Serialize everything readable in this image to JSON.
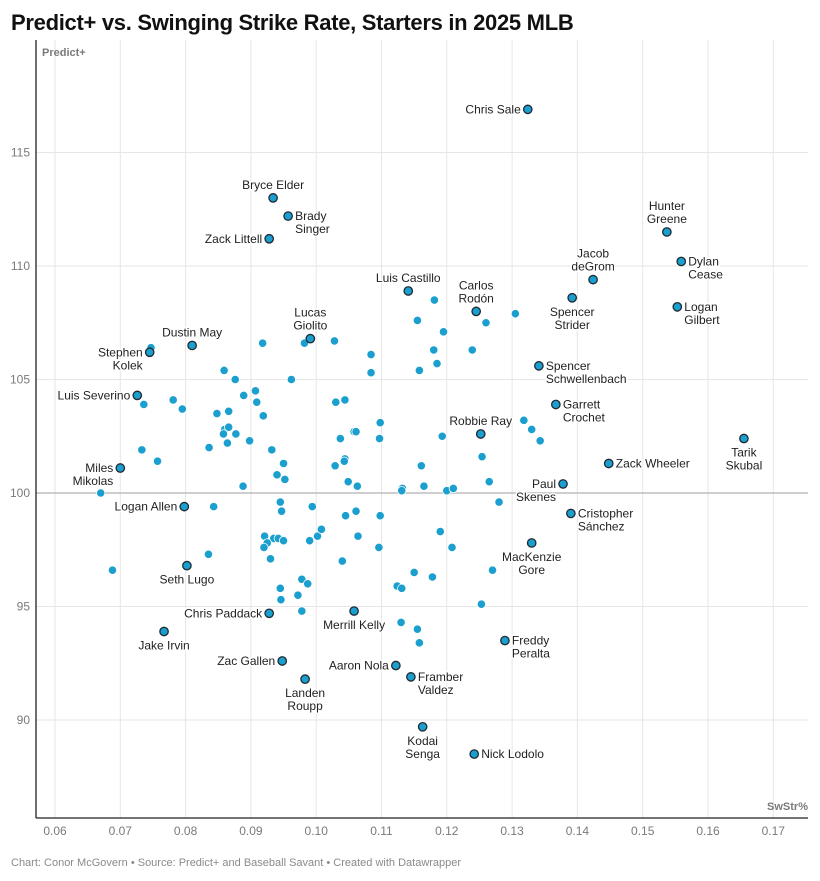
{
  "title": "Predict+ vs. Swinging Strike Rate, Starters in 2025 MLB",
  "footer": "Chart: Conor McGovern • Source: Predict+ and Baseball Savant • Created with Datawrapper",
  "colors": {
    "dot": "#1a9fcf",
    "dot_outline": "#1f2a33",
    "grid": "#e6e6e6",
    "axis": "#222222",
    "ref_line": "#bdbdbd"
  },
  "chart_data": {
    "type": "scatter",
    "title": "Predict+ vs. Swinging Strike Rate, Starters in 2025 MLB",
    "xlabel": "SwStr%",
    "ylabel": "Predict+",
    "xlim": [
      0.0545,
      0.1755
    ],
    "ylim": [
      85.7,
      118.4
    ],
    "x_ticks": [
      "0.06",
      "0.07",
      "0.08",
      "0.09",
      "0.10",
      "0.11",
      "0.12",
      "0.13",
      "0.14",
      "0.15",
      "0.16",
      "0.17"
    ],
    "x_tick_values": [
      0.06,
      0.07,
      0.08,
      0.09,
      0.1,
      0.11,
      0.12,
      0.13,
      0.14,
      0.15,
      0.16,
      0.17
    ],
    "y_ticks": [
      "90",
      "95",
      "100",
      "105",
      "110",
      "115"
    ],
    "y_tick_values": [
      90,
      95,
      100,
      105,
      110,
      115
    ],
    "reference_line_y": 100,
    "grid": true,
    "labeled_points": [
      {
        "name": "Chris Sale",
        "lines": [
          "Chris Sale"
        ],
        "x": 0.1324,
        "y": 116.9,
        "pos": "left"
      },
      {
        "name": "Bryce Elder",
        "lines": [
          "Bryce Elder"
        ],
        "x": 0.0934,
        "y": 113.0,
        "pos": "top"
      },
      {
        "name": "Brady Singer",
        "lines": [
          "Brady",
          "Singer"
        ],
        "x": 0.0957,
        "y": 112.2,
        "pos": "right"
      },
      {
        "name": "Zack Littell",
        "lines": [
          "Zack Littell"
        ],
        "x": 0.0928,
        "y": 111.2,
        "pos": "left"
      },
      {
        "name": "Hunter Greene",
        "lines": [
          "Hunter",
          "Greene"
        ],
        "x": 0.1537,
        "y": 111.5,
        "pos": "top"
      },
      {
        "name": "Dylan Cease",
        "lines": [
          "Dylan",
          "Cease"
        ],
        "x": 0.1559,
        "y": 110.2,
        "pos": "right"
      },
      {
        "name": "Jacob deGrom",
        "lines": [
          "Jacob",
          "deGrom"
        ],
        "x": 0.1424,
        "y": 109.4,
        "pos": "top"
      },
      {
        "name": "Spencer Strider",
        "lines": [
          "Spencer",
          "Strider"
        ],
        "x": 0.1392,
        "y": 108.6,
        "pos": "bottom"
      },
      {
        "name": "Logan Gilbert",
        "lines": [
          "Logan",
          "Gilbert"
        ],
        "x": 0.1553,
        "y": 108.2,
        "pos": "right"
      },
      {
        "name": "Luis Castillo",
        "lines": [
          "Luis Castillo"
        ],
        "x": 0.1141,
        "y": 108.9,
        "pos": "top"
      },
      {
        "name": "Carlos Rodón",
        "lines": [
          "Carlos",
          "Rodón"
        ],
        "x": 0.1245,
        "y": 108.0,
        "pos": "top"
      },
      {
        "name": "Lucas Giolito",
        "lines": [
          "Lucas",
          "Giolito"
        ],
        "x": 0.0991,
        "y": 106.8,
        "pos": "top"
      },
      {
        "name": "Dustin May",
        "lines": [
          "Dustin May"
        ],
        "x": 0.081,
        "y": 106.5,
        "pos": "top"
      },
      {
        "name": "Stephen Kolek",
        "lines": [
          "Stephen",
          "Kolek"
        ],
        "x": 0.0745,
        "y": 106.2,
        "pos": "left"
      },
      {
        "name": "Spencer Schwellenbach",
        "lines": [
          "Spencer",
          "Schwellenbach"
        ],
        "x": 0.1341,
        "y": 105.6,
        "pos": "right"
      },
      {
        "name": "Luis Severino",
        "lines": [
          "Luis Severino"
        ],
        "x": 0.0726,
        "y": 104.3,
        "pos": "left"
      },
      {
        "name": "Garrett Crochet",
        "lines": [
          "Garrett",
          "Crochet"
        ],
        "x": 0.1367,
        "y": 103.9,
        "pos": "right"
      },
      {
        "name": "Robbie Ray",
        "lines": [
          "Robbie Ray"
        ],
        "x": 0.1252,
        "y": 102.6,
        "pos": "top"
      },
      {
        "name": "Tarik Skubal",
        "lines": [
          "Tarik",
          "Skubal"
        ],
        "x": 0.1655,
        "y": 102.4,
        "pos": "bottom"
      },
      {
        "name": "Zack Wheeler",
        "lines": [
          "Zack Wheeler"
        ],
        "x": 0.1448,
        "y": 101.3,
        "pos": "right"
      },
      {
        "name": "Miles Mikolas",
        "lines": [
          "Miles",
          "Mikolas"
        ],
        "x": 0.07,
        "y": 101.1,
        "pos": "left"
      },
      {
        "name": "Paul Skenes",
        "lines": [
          "Paul",
          "Skenes"
        ],
        "x": 0.1378,
        "y": 100.4,
        "pos": "left"
      },
      {
        "name": "Logan Allen",
        "lines": [
          "Logan Allen"
        ],
        "x": 0.0798,
        "y": 99.4,
        "pos": "left"
      },
      {
        "name": "Cristopher Sánchez",
        "lines": [
          "Cristopher",
          "Sánchez"
        ],
        "x": 0.139,
        "y": 99.1,
        "pos": "right"
      },
      {
        "name": "MacKenzie Gore",
        "lines": [
          "MacKenzie",
          "Gore"
        ],
        "x": 0.133,
        "y": 97.8,
        "pos": "bottom"
      },
      {
        "name": "Seth Lugo",
        "lines": [
          "Seth Lugo"
        ],
        "x": 0.0802,
        "y": 96.8,
        "pos": "bottom"
      },
      {
        "name": "Chris Paddack",
        "lines": [
          "Chris Paddack"
        ],
        "x": 0.0928,
        "y": 94.7,
        "pos": "left"
      },
      {
        "name": "Merrill Kelly",
        "lines": [
          "Merrill Kelly"
        ],
        "x": 0.1058,
        "y": 94.8,
        "pos": "bottom"
      },
      {
        "name": "Jake Irvin",
        "lines": [
          "Jake Irvin"
        ],
        "x": 0.0767,
        "y": 93.9,
        "pos": "bottom"
      },
      {
        "name": "Freddy Peralta",
        "lines": [
          "Freddy",
          "Peralta"
        ],
        "x": 0.1289,
        "y": 93.5,
        "pos": "right"
      },
      {
        "name": "Zac Gallen",
        "lines": [
          "Zac Gallen"
        ],
        "x": 0.0948,
        "y": 92.6,
        "pos": "left"
      },
      {
        "name": "Aaron Nola",
        "lines": [
          "Aaron Nola"
        ],
        "x": 0.1122,
        "y": 92.4,
        "pos": "left"
      },
      {
        "name": "Framber Valdez",
        "lines": [
          "Framber",
          "Valdez"
        ],
        "x": 0.1145,
        "y": 91.9,
        "pos": "right"
      },
      {
        "name": "Landen Roupp",
        "lines": [
          "Landen",
          "Roupp"
        ],
        "x": 0.0983,
        "y": 91.8,
        "pos": "bottom"
      },
      {
        "name": "Kodai Senga",
        "lines": [
          "Kodai",
          "Senga"
        ],
        "x": 0.1163,
        "y": 89.7,
        "pos": "bottom"
      },
      {
        "name": "Nick Lodolo",
        "lines": [
          "Nick Lodolo"
        ],
        "x": 0.1242,
        "y": 88.5,
        "pos": "right"
      }
    ],
    "unlabeled_points": [
      [
        0.0747,
        106.4
      ],
      [
        0.0859,
        105.4
      ],
      [
        0.0918,
        106.6
      ],
      [
        0.0962,
        105.0
      ],
      [
        0.0876,
        105.0
      ],
      [
        0.0907,
        104.5
      ],
      [
        0.0889,
        104.3
      ],
      [
        0.0909,
        104.0
      ],
      [
        0.0781,
        104.1
      ],
      [
        0.0736,
        103.9
      ],
      [
        0.0795,
        103.7
      ],
      [
        0.0848,
        103.5
      ],
      [
        0.0866,
        103.6
      ],
      [
        0.0919,
        103.4
      ],
      [
        0.086,
        102.8
      ],
      [
        0.0866,
        102.9
      ],
      [
        0.0877,
        102.6
      ],
      [
        0.0858,
        102.6
      ],
      [
        0.0836,
        102.0
      ],
      [
        0.0864,
        102.2
      ],
      [
        0.0898,
        102.3
      ],
      [
        0.0932,
        101.9
      ],
      [
        0.0733,
        101.9
      ],
      [
        0.0757,
        101.4
      ],
      [
        0.095,
        101.3
      ],
      [
        0.094,
        100.8
      ],
      [
        0.0952,
        100.6
      ],
      [
        0.0888,
        100.3
      ],
      [
        0.067,
        100.0
      ],
      [
        0.1028,
        106.7
      ],
      [
        0.0982,
        106.6
      ],
      [
        0.1084,
        106.1
      ],
      [
        0.1084,
        105.3
      ],
      [
        0.118,
        106.3
      ],
      [
        0.1158,
        105.4
      ],
      [
        0.1185,
        105.7
      ],
      [
        0.1181,
        108.5
      ],
      [
        0.1155,
        107.6
      ],
      [
        0.1195,
        107.1
      ],
      [
        0.1239,
        106.3
      ],
      [
        0.126,
        107.5
      ],
      [
        0.1305,
        107.9
      ],
      [
        0.103,
        104.0
      ],
      [
        0.1044,
        104.1
      ],
      [
        0.1098,
        103.1
      ],
      [
        0.1037,
        102.4
      ],
      [
        0.1058,
        102.7
      ],
      [
        0.1061,
        102.7
      ],
      [
        0.1097,
        102.4
      ],
      [
        0.1193,
        102.5
      ],
      [
        0.1044,
        101.5
      ],
      [
        0.1043,
        101.4
      ],
      [
        0.1029,
        101.2
      ],
      [
        0.1161,
        101.2
      ],
      [
        0.1254,
        101.6
      ],
      [
        0.1049,
        100.5
      ],
      [
        0.1063,
        100.3
      ],
      [
        0.1132,
        100.2
      ],
      [
        0.1131,
        100.1
      ],
      [
        0.1165,
        100.3
      ],
      [
        0.12,
        100.1
      ],
      [
        0.121,
        100.2
      ],
      [
        0.1265,
        100.5
      ],
      [
        0.1318,
        103.2
      ],
      [
        0.133,
        102.8
      ],
      [
        0.1343,
        102.3
      ],
      [
        0.0945,
        99.6
      ],
      [
        0.0947,
        99.2
      ],
      [
        0.0843,
        99.4
      ],
      [
        0.0994,
        99.4
      ],
      [
        0.1045,
        99.0
      ],
      [
        0.1061,
        99.2
      ],
      [
        0.1098,
        99.0
      ],
      [
        0.128,
        99.6
      ],
      [
        0.0921,
        98.1
      ],
      [
        0.0935,
        98.0
      ],
      [
        0.0942,
        98.0
      ],
      [
        0.095,
        97.9
      ],
      [
        0.0925,
        97.8
      ],
      [
        0.092,
        97.6
      ],
      [
        0.093,
        97.1
      ],
      [
        0.099,
        97.9
      ],
      [
        0.1002,
        98.1
      ],
      [
        0.1008,
        98.4
      ],
      [
        0.1064,
        98.1
      ],
      [
        0.1096,
        97.6
      ],
      [
        0.119,
        98.3
      ],
      [
        0.1208,
        97.6
      ],
      [
        0.0835,
        97.3
      ],
      [
        0.0688,
        96.6
      ],
      [
        0.104,
        97.0
      ],
      [
        0.115,
        96.5
      ],
      [
        0.1178,
        96.3
      ],
      [
        0.127,
        96.6
      ],
      [
        0.0978,
        96.2
      ],
      [
        0.0987,
        96.0
      ],
      [
        0.0945,
        95.8
      ],
      [
        0.0972,
        95.5
      ],
      [
        0.0946,
        95.3
      ],
      [
        0.0978,
        94.8
      ],
      [
        0.1124,
        95.9
      ],
      [
        0.1131,
        95.8
      ],
      [
        0.1253,
        95.1
      ],
      [
        0.113,
        94.3
      ],
      [
        0.1155,
        94.0
      ],
      [
        0.1158,
        93.4
      ]
    ]
  }
}
